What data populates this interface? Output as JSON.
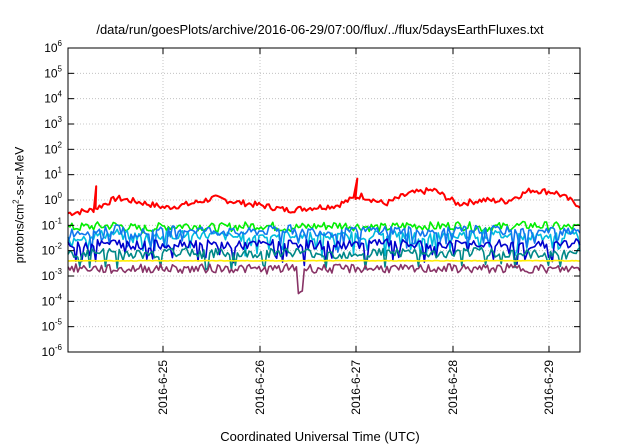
{
  "chart_data": {
    "type": "line",
    "title": "/data/run/goesPlots/archive/2016-06-29/07:00/flux/../flux/5daysEarthFluxes.txt",
    "xlabel": "Coordinated Universal Time (UTC)",
    "ylabel": {
      "pre": "protons/cm",
      "sup": "2",
      "post": "-s-sr-MeV"
    },
    "y_scale": "log",
    "ylim": [
      1e-06,
      1000000.0
    ],
    "y_ticks": [
      {
        "base": "10",
        "exp": "-6",
        "value": 1e-06
      },
      {
        "base": "10",
        "exp": "-5",
        "value": 1e-05
      },
      {
        "base": "10",
        "exp": "-4",
        "value": 0.0001
      },
      {
        "base": "10",
        "exp": "-3",
        "value": 0.001
      },
      {
        "base": "10",
        "exp": "-2",
        "value": 0.01
      },
      {
        "base": "10",
        "exp": "-1",
        "value": 0.1
      },
      {
        "base": "10",
        "exp": "0",
        "value": 1
      },
      {
        "base": "10",
        "exp": "1",
        "value": 10
      },
      {
        "base": "10",
        "exp": "2",
        "value": 100
      },
      {
        "base": "10",
        "exp": "3",
        "value": 1000
      },
      {
        "base": "10",
        "exp": "4",
        "value": 10000
      },
      {
        "base": "10",
        "exp": "5",
        "value": 100000
      },
      {
        "base": "10",
        "exp": "6",
        "value": 1000000
      }
    ],
    "xlim": [
      "2016-06-24",
      "2016-06-29 07:00"
    ],
    "x_ticks": [
      "2016-6-25",
      "2016-6-26",
      "2016-6-27",
      "2016-6-28",
      "2016-6-29"
    ],
    "grid": true,
    "series": [
      {
        "color": "#ff0000",
        "level": 0.6,
        "jitter": 0.35,
        "spikes": [
          [
            2016.14,
            3.5
          ],
          [
            2016.6,
            7
          ]
        ],
        "x": [
          "06-24 00:00",
          "06-24 06:00",
          "06-24 12:00",
          "06-24 18:00",
          "06-25 00:00",
          "06-25 06:00",
          "06-25 12:00",
          "06-25 18:00",
          "06-26 00:00",
          "06-26 06:00",
          "06-26 12:00",
          "06-26 18:00",
          "06-27 00:00",
          "06-27 06:00",
          "06-27 12:00",
          "06-27 18:00",
          "06-28 00:00",
          "06-28 06:00",
          "06-28 12:00",
          "06-28 18:00",
          "06-29 00:00",
          "06-29 06:00"
        ],
        "values": [
          0.3,
          0.4,
          1.2,
          0.8,
          0.5,
          0.7,
          1.2,
          0.8,
          0.6,
          0.4,
          0.5,
          0.6,
          1.5,
          0.7,
          1.8,
          2.5,
          0.7,
          1.0,
          0.9,
          2.5,
          2.0,
          0.6
        ]
      },
      {
        "color": "#00ee00",
        "values": [
          0.08,
          0.09,
          0.1,
          0.07,
          0.09,
          0.1,
          0.08,
          0.09,
          0.1,
          0.08,
          0.09,
          0.1,
          0.09,
          0.08,
          0.1,
          0.09,
          0.1,
          0.08,
          0.09,
          0.1,
          0.09,
          0.08
        ]
      },
      {
        "color": "#00bbdd",
        "values": [
          0.03,
          0.04,
          0.05,
          0.035,
          0.04,
          0.045,
          0.04,
          0.035,
          0.04,
          0.045,
          0.04,
          0.035,
          0.04,
          0.045,
          0.04,
          0.035,
          0.04,
          0.045,
          0.04,
          0.035,
          0.04,
          0.045
        ]
      },
      {
        "color": "#1177ee",
        "values": [
          0.05,
          0.06,
          0.07,
          0.05,
          0.06,
          0.07,
          0.06,
          0.05,
          0.06,
          0.07,
          0.06,
          0.05,
          0.06,
          0.07,
          0.06,
          0.05,
          0.06,
          0.07,
          0.06,
          0.05,
          0.06,
          0.07
        ]
      },
      {
        "color": "#0000cc",
        "values": [
          0.015,
          0.018,
          0.02,
          0.016,
          0.018,
          0.02,
          0.017,
          0.016,
          0.018,
          0.02,
          0.017,
          0.016,
          0.018,
          0.02,
          0.017,
          0.016,
          0.018,
          0.02,
          0.017,
          0.016,
          0.018,
          0.02
        ]
      },
      {
        "color": "#008888",
        "values": [
          0.007,
          0.008,
          0.009,
          0.007,
          0.008,
          0.009,
          0.008,
          0.007,
          0.008,
          0.009,
          0.008,
          0.007,
          0.008,
          0.009,
          0.008,
          0.007,
          0.008,
          0.009,
          0.008,
          0.007,
          0.008,
          0.009
        ]
      },
      {
        "color": "#ffee00",
        "values": [
          0.004,
          0.004,
          0.004,
          0.004,
          0.004,
          0.004,
          0.004,
          0.004,
          0.004,
          0.004,
          0.004,
          0.004,
          0.004,
          0.004,
          0.004,
          0.004,
          0.004,
          0.004,
          0.004,
          0.004,
          0.004,
          0.004
        ]
      },
      {
        "color": "#883366",
        "values": [
          0.002,
          0.002,
          0.0018,
          0.002,
          0.002,
          0.0019,
          0.002,
          0.002,
          0.0018,
          0.002,
          0.002,
          0.0019,
          0.002,
          0.002,
          0.0018,
          0.002,
          0.002,
          0.0019,
          0.002,
          0.002,
          0.0018,
          0.002
        ]
      }
    ]
  }
}
